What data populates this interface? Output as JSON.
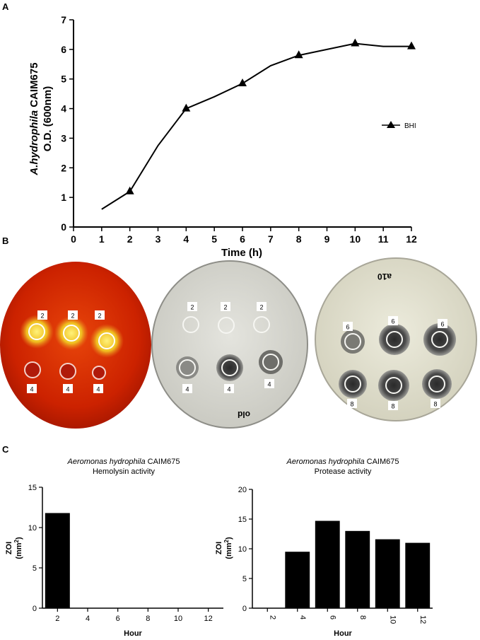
{
  "panels": {
    "a": "A",
    "b": "B",
    "c": "C"
  },
  "chart_data": [
    {
      "type": "line",
      "panel": "A",
      "ylabel_italic": "A.hydrophila",
      "ylabel_rest": " CAIM675",
      "ylabel_line2": "O.D. (600nm)",
      "xlabel": "Time (h)",
      "xlim": [
        0,
        12
      ],
      "ylim": [
        0,
        7
      ],
      "x_ticks": [
        "0",
        "1",
        "2",
        "3",
        "4",
        "5",
        "6",
        "7",
        "8",
        "9",
        "10",
        "11",
        "12"
      ],
      "y_ticks": [
        "0",
        "1",
        "2",
        "3",
        "4",
        "5",
        "6",
        "7"
      ],
      "series": [
        {
          "name": "BHI",
          "x": [
            1,
            2,
            3,
            4,
            5,
            6,
            7,
            8,
            9,
            10,
            11,
            12
          ],
          "y": [
            0.6,
            1.2,
            2.75,
            4.0,
            4.4,
            4.85,
            5.45,
            5.8,
            6.0,
            6.2,
            6.1,
            6.1
          ],
          "markers_at": [
            2,
            4,
            6,
            8,
            10,
            12
          ]
        }
      ]
    },
    {
      "type": "bar",
      "panel": "C-left",
      "title_italic": "Aeromonas hydrophila",
      "title_rest": " CAIM675",
      "subtitle": "Hemolysin activity",
      "ylabel": "ZOI",
      "ylabel_unit": "(mm",
      "ylabel_sup": "2",
      "ylabel_close": ")",
      "xlabel": "Hour",
      "categories": [
        "2",
        "4",
        "6",
        "8",
        "10",
        "12"
      ],
      "values": [
        11.8,
        0,
        0,
        0,
        0,
        0
      ],
      "ylim": [
        0,
        15
      ],
      "y_ticks": [
        "0",
        "5",
        "10",
        "15"
      ]
    },
    {
      "type": "bar",
      "panel": "C-right",
      "title_italic": "Aeromonas hydrophila",
      "title_rest": " CAIM675",
      "subtitle": "Protease activity",
      "ylabel": "ZOI",
      "ylabel_unit": "(mm",
      "ylabel_sup": "2",
      "ylabel_close": ")",
      "xlabel": "Hour",
      "categories": [
        "2",
        "4",
        "6",
        "8",
        "10",
        "12"
      ],
      "values": [
        0,
        9.5,
        14.7,
        13.0,
        11.6,
        11.0
      ],
      "ylim": [
        0,
        20
      ],
      "y_ticks": [
        "0",
        "5",
        "10",
        "15",
        "20"
      ]
    }
  ],
  "plates": {
    "blood": {
      "top": [
        "2",
        "2",
        "2"
      ],
      "bottom": [
        "4",
        "4",
        "4"
      ]
    },
    "milk1": {
      "top": [
        "2",
        "2",
        "2"
      ],
      "bottom": [
        "4",
        "4",
        "4"
      ],
      "handwriting": "old"
    },
    "milk2": {
      "top": [
        "6",
        "6",
        "6"
      ],
      "bottom": [
        "8",
        "8",
        "8"
      ],
      "handwriting": "a10"
    }
  },
  "colors": {
    "blood": "#cc2200",
    "milk": "#d8d8d2",
    "bar": "#000000"
  }
}
